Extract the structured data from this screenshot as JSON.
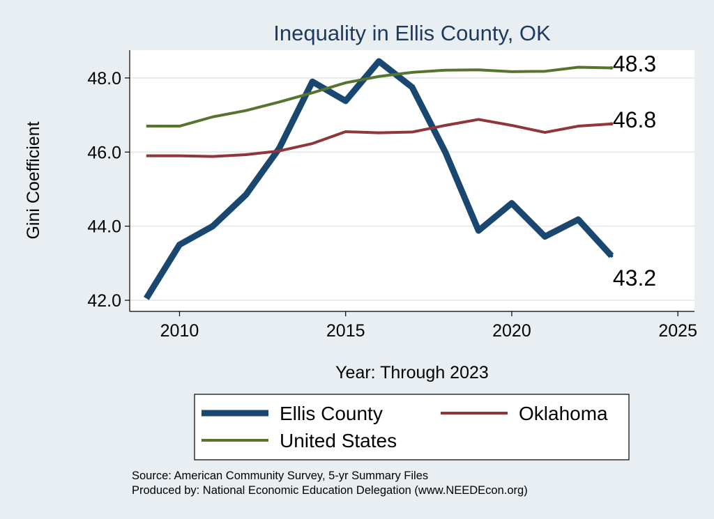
{
  "chart_data": {
    "type": "line",
    "title": "Inequality in Ellis County, OK",
    "xlabel": "Year: Through 2023",
    "ylabel": "Gini Coefficient",
    "xlim": [
      2008.5,
      2025.5
    ],
    "ylim": [
      41.7,
      48.75
    ],
    "x_ticks": [
      2010,
      2015,
      2020,
      2025
    ],
    "y_ticks": [
      42.0,
      44.0,
      46.0,
      48.0
    ],
    "y_tick_labels": [
      "42.0",
      "44.0",
      "46.0",
      "48.0"
    ],
    "grid": true,
    "x": [
      2009,
      2010,
      2011,
      2012,
      2013,
      2014,
      2015,
      2016,
      2017,
      2018,
      2019,
      2020,
      2021,
      2022,
      2023
    ],
    "series": [
      {
        "name": "Ellis County",
        "color": "#1a476f",
        "values": [
          42.05,
          43.5,
          44.0,
          44.85,
          46.1,
          47.9,
          47.38,
          48.45,
          47.75,
          46.0,
          43.88,
          44.62,
          43.72,
          44.18,
          43.2
        ],
        "end_label": "43.2"
      },
      {
        "name": "Oklahoma",
        "color": "#90353b",
        "values": [
          45.9,
          45.9,
          45.88,
          45.93,
          46.03,
          46.23,
          46.55,
          46.52,
          46.54,
          46.72,
          46.88,
          46.72,
          46.53,
          46.7,
          46.76
        ],
        "end_label": "46.8"
      },
      {
        "name": "United States",
        "color": "#55752f",
        "values": [
          46.7,
          46.7,
          46.95,
          47.12,
          47.35,
          47.6,
          47.87,
          48.04,
          48.15,
          48.21,
          48.22,
          48.17,
          48.18,
          48.29,
          48.27
        ],
        "end_label": "48.3"
      }
    ],
    "legend": {
      "position": "bottom",
      "entries": [
        "Ellis County",
        "Oklahoma",
        "United States"
      ]
    },
    "source_lines": [
      "Source: American Community Survey, 5-yr Summary Files",
      "Produced by: National Economic Education Delegation (www.NEEDEcon.org)"
    ]
  }
}
